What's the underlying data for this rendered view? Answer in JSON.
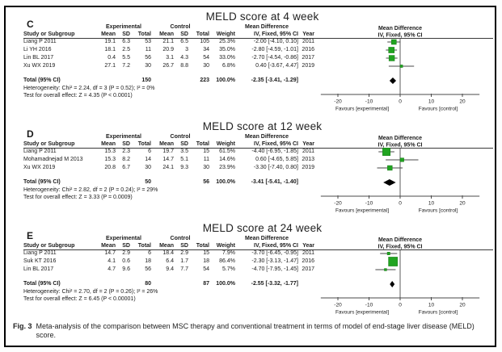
{
  "colors": {
    "square": "#21a421",
    "square_edge": "#157a15",
    "ci_line": "#4a4a4a",
    "axis": "#4a4a4a",
    "diamond": "#000000",
    "text": "#1a1a1a"
  },
  "caption": {
    "label": "Fig. 3",
    "text": "Meta-analysis of the comparison between MSC therapy and conventional treatment in terms of model of end-stage liver disease (MELD) score."
  },
  "chart_data": [
    {
      "type": "forest",
      "panel_letter": "C",
      "title": "MELD score at 4 week",
      "effect_model": "IV, Fixed, 95% CI",
      "group_headers": {
        "experimental": "Experimental",
        "control": "Control",
        "mean_difference": "Mean Difference"
      },
      "column_headers": {
        "study": "Study or Subgroup",
        "mean": "Mean",
        "sd": "SD",
        "total": "Total",
        "weight": "Weight",
        "ci": "IV, Fixed, 95% CI",
        "year": "Year"
      },
      "studies": [
        {
          "study": "Liang P 2011",
          "exp_mean": "19.1",
          "exp_sd": "6.3",
          "exp_total": "53",
          "ctl_mean": "21.1",
          "ctl_sd": "6.5",
          "ctl_total": "105",
          "weight": "25.3%",
          "ci_text": "-2.00 [-4.10, 0.10]",
          "year": "2011",
          "md": -2.0,
          "lo": -4.1,
          "hi": 0.1,
          "weight_value": 25.3
        },
        {
          "study": "Li YH 2016",
          "exp_mean": "18.1",
          "exp_sd": "2.5",
          "exp_total": "11",
          "ctl_mean": "20.9",
          "ctl_sd": "3",
          "ctl_total": "34",
          "weight": "35.0%",
          "ci_text": "-2.80 [-4.59, -1.01]",
          "year": "2016",
          "md": -2.8,
          "lo": -4.59,
          "hi": -1.01,
          "weight_value": 35.0
        },
        {
          "study": "Lin BL 2017",
          "exp_mean": "0.4",
          "exp_sd": "5.5",
          "exp_total": "56",
          "ctl_mean": "3.1",
          "ctl_sd": "4.3",
          "ctl_total": "54",
          "weight": "33.0%",
          "ci_text": "-2.70 [-4.54, -0.86]",
          "year": "2017",
          "md": -2.7,
          "lo": -4.54,
          "hi": -0.86,
          "weight_value": 33.0
        },
        {
          "study": "Xu WX 2019",
          "exp_mean": "27.1",
          "exp_sd": "7.2",
          "exp_total": "30",
          "ctl_mean": "26.7",
          "ctl_sd": "8.8",
          "ctl_total": "30",
          "weight": "6.8%",
          "ci_text": "0.40 [-3.67, 4.47]",
          "year": "2019",
          "md": 0.4,
          "lo": -3.67,
          "hi": 4.47,
          "weight_value": 6.8
        }
      ],
      "total": {
        "label": "Total (95% CI)",
        "exp_total": "150",
        "ctl_total": "223",
        "weight": "100.0%",
        "ci_text": "-2.35 [-3.41, -1.29]",
        "md": -2.35,
        "lo": -3.41,
        "hi": -1.29
      },
      "heterogeneity": "Heterogeneity: Chi² = 2.24, df = 3 (P = 0.52); I² = 0%",
      "overall_effect": "Test for overall effect: Z = 4.35 (P < 0.0001)",
      "axis": {
        "ticks": [
          -20,
          -10,
          0,
          10,
          20
        ],
        "tick_labels": [
          "-20",
          "-10",
          "0",
          "10",
          "20"
        ],
        "range": [
          -25.5,
          25.5
        ]
      },
      "favours_left": "Favours [experimental]",
      "favours_right": "Favours [control]"
    },
    {
      "type": "forest",
      "panel_letter": "D",
      "title": "MELD score at 12 week",
      "effect_model": "IV, Fixed, 95% CI",
      "group_headers": {
        "experimental": "Experimental",
        "control": "Control",
        "mean_difference": "Mean Difference"
      },
      "column_headers": {
        "study": "Study or Subgroup",
        "mean": "Mean",
        "sd": "SD",
        "total": "Total",
        "weight": "Weight",
        "ci": "IV, Fixed, 95% CI",
        "year": "Year"
      },
      "studies": [
        {
          "study": "Liang P 2011",
          "exp_mean": "15.3",
          "exp_sd": "2.3",
          "exp_total": "6",
          "ctl_mean": "19.7",
          "ctl_sd": "3.5",
          "ctl_total": "15",
          "weight": "61.5%",
          "ci_text": "-4.40 [-6.95, -1.85]",
          "year": "2011",
          "md": -4.4,
          "lo": -6.95,
          "hi": -1.85,
          "weight_value": 61.5
        },
        {
          "study": "Mohamadnejad M 2013",
          "exp_mean": "15.3",
          "exp_sd": "8.2",
          "exp_total": "14",
          "ctl_mean": "14.7",
          "ctl_sd": "5.1",
          "ctl_total": "11",
          "weight": "14.6%",
          "ci_text": "0.60 [-4.65, 5.85]",
          "year": "2013",
          "md": 0.6,
          "lo": -4.65,
          "hi": 5.85,
          "weight_value": 14.6
        },
        {
          "study": "Xu WX 2019",
          "exp_mean": "20.8",
          "exp_sd": "6.7",
          "exp_total": "30",
          "ctl_mean": "24.1",
          "ctl_sd": "9.3",
          "ctl_total": "30",
          "weight": "23.9%",
          "ci_text": "-3.30 [-7.40, 0.80]",
          "year": "2019",
          "md": -3.3,
          "lo": -7.4,
          "hi": 0.8,
          "weight_value": 23.9
        }
      ],
      "total": {
        "label": "Total (95% CI)",
        "exp_total": "50",
        "ctl_total": "56",
        "weight": "100.0%",
        "ci_text": "-3.41 [-5.41, -1.40]",
        "md": -3.41,
        "lo": -5.41,
        "hi": -1.4
      },
      "heterogeneity": "Heterogeneity: Chi² = 2.82, df = 2 (P = 0.24); I² = 29%",
      "overall_effect": "Test for overall effect: Z = 3.33 (P = 0.0009)",
      "axis": {
        "ticks": [
          -20,
          -10,
          0,
          10,
          20
        ],
        "tick_labels": [
          "-20",
          "-10",
          "0",
          "10",
          "20"
        ],
        "range": [
          -25.5,
          25.5
        ]
      },
      "favours_left": "Favours [experimental]",
      "favours_right": "Favours [control]"
    },
    {
      "type": "forest",
      "panel_letter": "E",
      "title": "MELD score at 24 week",
      "effect_model": "IV, Fixed, 95% CI",
      "group_headers": {
        "experimental": "Experimental",
        "control": "Control",
        "mean_difference": "Mean Difference"
      },
      "column_headers": {
        "study": "Study or Subgroup",
        "mean": "Mean",
        "sd": "SD",
        "total": "Total",
        "weight": "Weight",
        "ci": "IV, Fixed, 95% CI",
        "year": "Year"
      },
      "studies": [
        {
          "study": "Liang P 2011",
          "exp_mean": "14.7",
          "exp_sd": "2.9",
          "exp_total": "6",
          "ctl_mean": "18.4",
          "ctl_sd": "2.9",
          "ctl_total": "15",
          "weight": "7.9%",
          "ci_text": "-3.70 [-6.45, -0.95]",
          "year": "2011",
          "md": -3.7,
          "lo": -6.45,
          "hi": -0.95,
          "weight_value": 7.9
        },
        {
          "study": "Suk KT 2016",
          "exp_mean": "4.1",
          "exp_sd": "0.6",
          "exp_total": "18",
          "ctl_mean": "6.4",
          "ctl_sd": "1.7",
          "ctl_total": "18",
          "weight": "86.4%",
          "ci_text": "-2.30 [-3.13, -1.47]",
          "year": "2016",
          "md": -2.3,
          "lo": -3.13,
          "hi": -1.47,
          "weight_value": 86.4
        },
        {
          "study": "Lin BL 2017",
          "exp_mean": "4.7",
          "exp_sd": "9.6",
          "exp_total": "56",
          "ctl_mean": "9.4",
          "ctl_sd": "7.7",
          "ctl_total": "54",
          "weight": "5.7%",
          "ci_text": "-4.70 [-7.95, -1.45]",
          "year": "2017",
          "md": -4.7,
          "lo": -7.95,
          "hi": -1.45,
          "weight_value": 5.7
        }
      ],
      "total": {
        "label": "Total (95% CI)",
        "exp_total": "80",
        "ctl_total": "87",
        "weight": "100.0%",
        "ci_text": "-2.55 [-3.32, -1.77]",
        "md": -2.55,
        "lo": -3.32,
        "hi": -1.77
      },
      "heterogeneity": "Heterogeneity: Chi² = 2.70, df = 2 (P = 0.26); I² = 26%",
      "overall_effect": "Test for overall effect: Z = 6.45 (P < 0.00001)",
      "axis": {
        "ticks": [
          -20,
          -10,
          0,
          10,
          20
        ],
        "tick_labels": [
          "-20",
          "-10",
          "0",
          "10",
          "20"
        ],
        "range": [
          -25.5,
          25.5
        ]
      },
      "favours_left": "Favours [experimental]",
      "favours_right": "Favours [control]"
    }
  ]
}
